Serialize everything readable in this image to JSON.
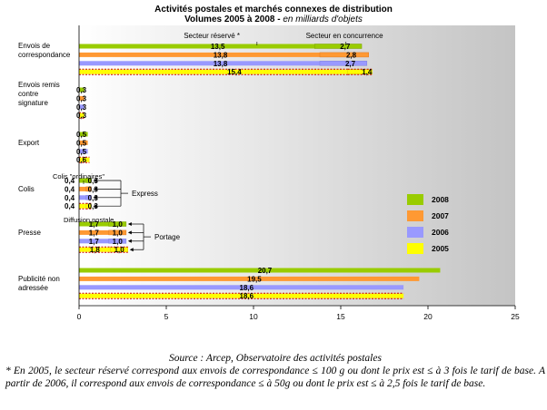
{
  "chart_data": {
    "type": "bar",
    "orientation": "horizontal",
    "stacked": true,
    "title": "Activités postales et marchés connexes de distribution",
    "subtitle_main": "Volumes 2005 à 2008 - ",
    "subtitle_italic": "en milliards d'objets",
    "xlim": [
      0,
      25
    ],
    "x_ticks": [
      "0",
      "5",
      "10",
      "15",
      "20",
      "25"
    ],
    "grid": false,
    "legend_position": "right",
    "segment_labels": {
      "reserve": "Secteur réservé *",
      "concurrence": "Secteur en concurrence"
    },
    "years": [
      "2008",
      "2007",
      "2006",
      "2005"
    ],
    "colors": {
      "2008": "#99cc00",
      "2007": "#ff9933",
      "2006": "#9999ff",
      "2005": "#ffff00"
    },
    "categories": [
      {
        "label": [
          "Envois de",
          "correspondance"
        ],
        "rows": [
          {
            "year": "2008",
            "reserve": 13.5,
            "concurrence": 2.7
          },
          {
            "year": "2007",
            "reserve": 13.8,
            "concurrence": 2.8
          },
          {
            "year": "2006",
            "reserve": 13.8,
            "concurrence": 2.7
          },
          {
            "year": "2005",
            "reserve": 15.4,
            "concurrence": 1.4
          }
        ]
      },
      {
        "label": [
          "Envois remis",
          "contre",
          "signature"
        ],
        "rows": [
          {
            "year": "2008",
            "reserve": 0.3
          },
          {
            "year": "2007",
            "reserve": 0.3
          },
          {
            "year": "2006",
            "reserve": 0.3
          },
          {
            "year": "2005",
            "reserve": 0.3
          }
        ]
      },
      {
        "label": [
          "Export"
        ],
        "rows": [
          {
            "year": "2008",
            "reserve": 0.5
          },
          {
            "year": "2007",
            "reserve": 0.5
          },
          {
            "year": "2006",
            "reserve": 0.5
          },
          {
            "year": "2005",
            "reserve": 0.6
          }
        ]
      },
      {
        "label": [
          "Colis"
        ],
        "sublabel": "Colis \"ordinaires\"",
        "group_label": "Express",
        "rows": [
          {
            "year": "2008",
            "ordinaires": 0.4,
            "express": 0.3
          },
          {
            "year": "2007",
            "ordinaires": 0.4,
            "express": 0.3
          },
          {
            "year": "2006",
            "ordinaires": 0.4,
            "express": 0.3
          },
          {
            "year": "2005",
            "ordinaires": 0.4,
            "express": 0.3
          }
        ]
      },
      {
        "label": [
          "Presse"
        ],
        "sublabel": "Diffusion postale",
        "group_label": "Portage",
        "rows": [
          {
            "year": "2008",
            "diffusion": 1.7,
            "portage": 1.0
          },
          {
            "year": "2007",
            "diffusion": 1.7,
            "portage": 1.0
          },
          {
            "year": "2006",
            "diffusion": 1.7,
            "portage": 1.0
          },
          {
            "year": "2005",
            "diffusion": 1.8,
            "portage": 1.0
          }
        ]
      },
      {
        "label": [
          "Publicité non",
          "adressée"
        ],
        "rows": [
          {
            "year": "2008",
            "concurrence": 20.7
          },
          {
            "year": "2007",
            "concurrence": 19.5
          },
          {
            "year": "2006",
            "concurrence": 18.6
          },
          {
            "year": "2005",
            "concurrence": 18.6
          }
        ]
      }
    ]
  },
  "footer": {
    "source": "Source : Arcep, Observatoire des activités postales",
    "note": "* En 2005, le secteur réservé correspond aux envois de correspondance ≤ 100 g ou dont le prix est ≤ à 3 fois le tarif de base. A partir de 2006, il correspond aux envois de correspondance ≤ à 50g ou dont le prix est ≤ à 2,5 fois le tarif de base."
  }
}
